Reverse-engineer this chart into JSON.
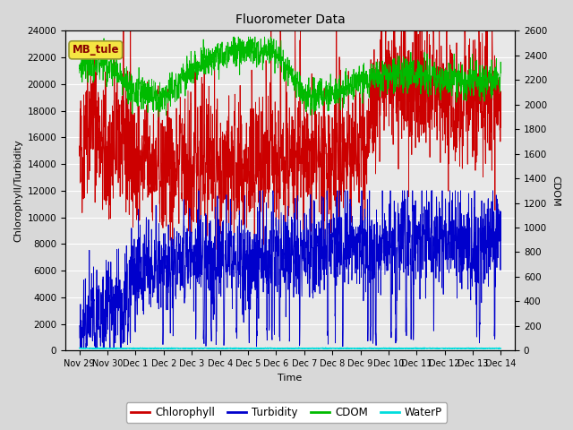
{
  "title": "Fluorometer Data",
  "xlabel": "Time",
  "ylabel_left": "Chlorophyll/Turbidity",
  "ylabel_right": "CDOM",
  "annotation": "MB_tule",
  "ylim_left": [
    0,
    24000
  ],
  "ylim_right": [
    0,
    2600
  ],
  "yticks_left": [
    0,
    2000,
    4000,
    6000,
    8000,
    10000,
    12000,
    14000,
    16000,
    18000,
    20000,
    22000,
    24000
  ],
  "yticks_right": [
    0,
    200,
    400,
    600,
    800,
    1000,
    1200,
    1400,
    1600,
    1800,
    2000,
    2200,
    2400,
    2600
  ],
  "xtick_labels": [
    "Nov 29",
    "Nov 30",
    "Dec 1",
    "Dec 2",
    "Dec 3",
    "Dec 4",
    "Dec 5",
    "Dec 6",
    "Dec 7",
    "Dec 8",
    "Dec 9",
    "Dec 10",
    "Dec 11",
    "Dec 12",
    "Dec 13",
    "Dec 14"
  ],
  "xtick_positions": [
    -2,
    -1,
    0,
    1,
    2,
    3,
    4,
    5,
    6,
    7,
    8,
    9,
    10,
    11,
    12,
    13
  ],
  "xlim": [
    -2.5,
    13.5
  ],
  "fig_bg": "#d8d8d8",
  "plot_bg": "#e8e8e8",
  "colors": {
    "chlorophyll": "#cc0000",
    "turbidity": "#0000cc",
    "cdom": "#00bb00",
    "waterp": "#00dddd"
  },
  "legend_entries": [
    "Chlorophyll",
    "Turbidity",
    "CDOM",
    "WaterP"
  ],
  "seed": 42,
  "n_points": 2000,
  "title_fontsize": 10,
  "axis_fontsize": 8,
  "tick_fontsize": 7.5
}
